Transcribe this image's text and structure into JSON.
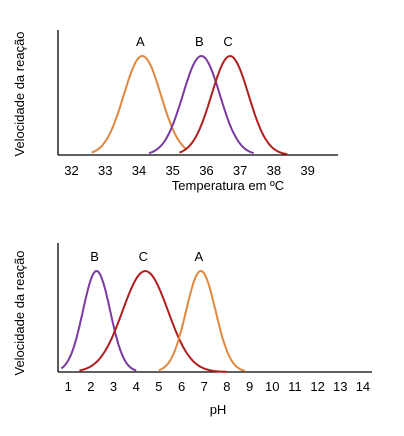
{
  "colors": {
    "A": "#e0883f",
    "B": "#7a3aa0",
    "C": "#b01e1e",
    "axis": "#000000"
  },
  "chart_data": [
    {
      "type": "line",
      "ylabel": "Velocidade da reação",
      "xlabel": "Temperatura em ºC",
      "xlim": [
        31.6,
        39.9
      ],
      "ticks": [
        "32",
        "33",
        "34",
        "35",
        "36",
        "37",
        "38",
        "39"
      ],
      "series": [
        {
          "name": "A",
          "peak_x": 34.1,
          "width": 0.55,
          "x_start": 32.6,
          "x_end": 35.4
        },
        {
          "name": "B",
          "peak_x": 35.85,
          "width": 0.55,
          "x_start": 34.3,
          "x_end": 37.4
        },
        {
          "name": "C",
          "peak_x": 36.7,
          "width": 0.55,
          "x_start": 35.2,
          "x_end": 38.4
        }
      ]
    },
    {
      "type": "line",
      "ylabel": "Velocidade da reação",
      "xlabel": "pH",
      "xlim": [
        0.55,
        14.4
      ],
      "ticks": [
        "1",
        "2",
        "3",
        "4",
        "5",
        "6",
        "7",
        "8",
        "9",
        "10",
        "11",
        "12",
        "13",
        "14"
      ],
      "series": [
        {
          "name": "B",
          "peak_x": 2.25,
          "width": 0.6,
          "x_start": 0.7,
          "x_end": 4.0
        },
        {
          "name": "C",
          "peak_x": 4.4,
          "width": 1.0,
          "x_start": 1.5,
          "x_end": 8.0
        },
        {
          "name": "A",
          "peak_x": 6.85,
          "width": 0.65,
          "x_start": 5.0,
          "x_end": 8.8
        }
      ]
    }
  ]
}
